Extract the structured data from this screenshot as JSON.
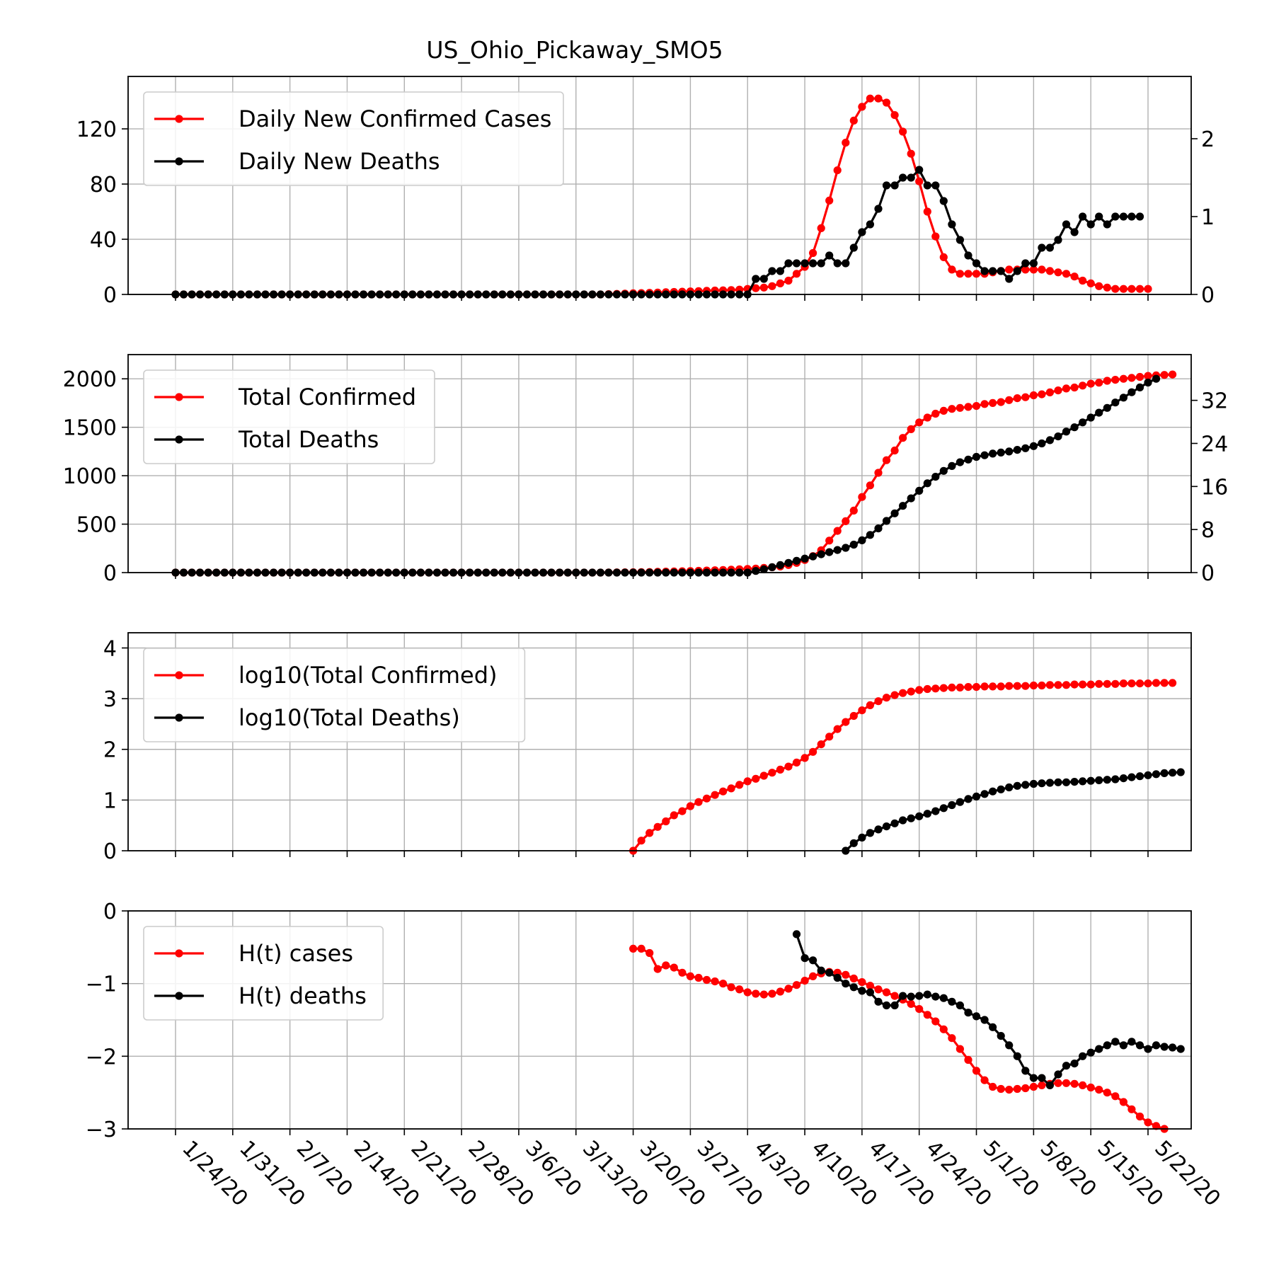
{
  "title": "US_Ohio_Pickaway_SMO5",
  "colors": {
    "cases": "#ff0000",
    "deaths": "#000000",
    "grid": "#b0b0b0"
  },
  "x_tick_labels": [
    "1/24/20",
    "1/31/20",
    "2/7/20",
    "2/14/20",
    "2/21/20",
    "2/28/20",
    "3/6/20",
    "3/13/20",
    "3/20/20",
    "3/27/20",
    "4/3/20",
    "4/10/20",
    "4/17/20",
    "4/24/20",
    "5/1/20",
    "5/8/20",
    "5/15/20",
    "5/22/20"
  ],
  "chart_data": [
    {
      "type": "line",
      "x_range": [
        "1/24/20",
        "5/25/20"
      ],
      "ylim": [
        0,
        158
      ],
      "y_ticks": [
        0,
        40,
        80,
        120
      ],
      "y2lim": [
        0,
        2.8
      ],
      "y2_ticks": [
        0,
        1,
        2
      ],
      "legend_placement": "top-left",
      "grid": true,
      "series": [
        {
          "name": "Daily New Confirmed Cases",
          "axis": "left",
          "start": "1/24/20",
          "values": [
            0,
            0,
            0,
            0,
            0,
            0,
            0,
            0,
            0,
            0,
            0,
            0,
            0,
            0,
            0,
            0,
            0,
            0,
            0,
            0,
            0,
            0,
            0,
            0,
            0,
            0,
            0,
            0,
            0,
            0,
            0,
            0,
            0,
            0,
            0,
            0,
            0,
            0,
            0,
            0,
            0,
            0,
            0,
            0,
            0,
            0,
            0,
            0,
            0,
            0,
            0,
            0,
            0,
            0.2,
            0.4,
            0.6,
            0.8,
            1,
            1.2,
            1.4,
            1.6,
            1.8,
            2,
            2.2,
            2.4,
            2.6,
            2.8,
            3,
            3.2,
            3.5,
            4,
            4.5,
            5,
            6,
            8,
            10,
            15,
            20,
            30,
            48,
            68,
            90,
            110,
            126,
            136,
            142,
            142,
            139,
            130,
            118,
            102,
            82,
            60,
            42,
            27,
            18,
            15,
            15,
            15,
            15,
            16,
            17,
            18,
            18,
            18,
            18,
            18,
            17,
            16,
            15,
            13,
            10,
            8,
            6,
            5,
            4,
            4,
            4,
            4,
            4
          ]
        },
        {
          "name": "Daily New Deaths",
          "axis": "right",
          "start": "1/24/20",
          "values": [
            0,
            0,
            0,
            0,
            0,
            0,
            0,
            0,
            0,
            0,
            0,
            0,
            0,
            0,
            0,
            0,
            0,
            0,
            0,
            0,
            0,
            0,
            0,
            0,
            0,
            0,
            0,
            0,
            0,
            0,
            0,
            0,
            0,
            0,
            0,
            0,
            0,
            0,
            0,
            0,
            0,
            0,
            0,
            0,
            0,
            0,
            0,
            0,
            0,
            0,
            0,
            0,
            0,
            0,
            0,
            0,
            0,
            0,
            0,
            0,
            0,
            0,
            0,
            0,
            0,
            0,
            0,
            0,
            0,
            0,
            0,
            0.2,
            0.2,
            0.3,
            0.3,
            0.4,
            0.4,
            0.4,
            0.4,
            0.4,
            0.5,
            0.4,
            0.4,
            0.6,
            0.8,
            0.9,
            1.1,
            1.4,
            1.4,
            1.5,
            1.5,
            1.6,
            1.4,
            1.4,
            1.2,
            0.9,
            0.7,
            0.5,
            0.4,
            0.3,
            0.3,
            0.3,
            0.2,
            0.3,
            0.4,
            0.4,
            0.6,
            0.6,
            0.7,
            0.9,
            0.8,
            1,
            0.9,
            1,
            0.9,
            1,
            1,
            1,
            1
          ]
        }
      ]
    },
    {
      "type": "line",
      "x_range": [
        "1/24/20",
        "5/25/20"
      ],
      "ylim": [
        0,
        2250
      ],
      "y_ticks": [
        0,
        500,
        1000,
        1500,
        2000
      ],
      "y2lim": [
        0,
        40.5
      ],
      "y2_ticks": [
        0,
        8,
        16,
        24,
        32
      ],
      "legend_placement": "top-left",
      "grid": true,
      "series": [
        {
          "name": "Total Confirmed",
          "axis": "left",
          "start": "1/24/20",
          "values": [
            0,
            0,
            0,
            0,
            0,
            0,
            0,
            0,
            0,
            0,
            0,
            0,
            0,
            0,
            0,
            0,
            0,
            0,
            0,
            0,
            0,
            0,
            0,
            0,
            0,
            0,
            0,
            0,
            0,
            0,
            0,
            0,
            0,
            0,
            0,
            0,
            0,
            0,
            0,
            0,
            0,
            0,
            0,
            0,
            0,
            0,
            0,
            0,
            0,
            0,
            0,
            0,
            0,
            1,
            2,
            3,
            4,
            5,
            6,
            8,
            10,
            12,
            14,
            16,
            18,
            21,
            24,
            27,
            30,
            34,
            38,
            42,
            48,
            55,
            63,
            78,
            100,
            130,
            170,
            230,
            330,
            430,
            530,
            640,
            780,
            900,
            1030,
            1160,
            1260,
            1390,
            1480,
            1550,
            1600,
            1640,
            1670,
            1690,
            1700,
            1710,
            1720,
            1740,
            1750,
            1760,
            1780,
            1800,
            1810,
            1830,
            1840,
            1860,
            1880,
            1900,
            1910,
            1930,
            1950,
            1960,
            1980,
            1990,
            2000,
            2010,
            2020,
            2030,
            2035,
            2040,
            2045
          ]
        },
        {
          "name": "Total Deaths",
          "axis": "right",
          "start": "1/24/20",
          "values": [
            0,
            0,
            0,
            0,
            0,
            0,
            0,
            0,
            0,
            0,
            0,
            0,
            0,
            0,
            0,
            0,
            0,
            0,
            0,
            0,
            0,
            0,
            0,
            0,
            0,
            0,
            0,
            0,
            0,
            0,
            0,
            0,
            0,
            0,
            0,
            0,
            0,
            0,
            0,
            0,
            0,
            0,
            0,
            0,
            0,
            0,
            0,
            0,
            0,
            0,
            0,
            0,
            0,
            0,
            0,
            0,
            0,
            0,
            0,
            0,
            0,
            0,
            0,
            0,
            0,
            0,
            0,
            0,
            0,
            0,
            0,
            0.3,
            0.6,
            1,
            1.4,
            1.8,
            2.2,
            2.6,
            3,
            3.4,
            3.8,
            4.2,
            4.6,
            5.2,
            6,
            7,
            8.2,
            9.6,
            11,
            12.4,
            13.8,
            15.2,
            16.6,
            17.8,
            18.9,
            19.8,
            20.5,
            21,
            21.5,
            21.8,
            22.1,
            22.3,
            22.5,
            22.8,
            23.1,
            23.5,
            24,
            24.6,
            25.3,
            26.2,
            27,
            27.9,
            28.8,
            29.7,
            30.6,
            31.6,
            32.5,
            33.5,
            34.4,
            35.3,
            36
          ]
        }
      ]
    },
    {
      "type": "line",
      "x_range": [
        "1/24/20",
        "5/25/20"
      ],
      "ylim": [
        0,
        4.3
      ],
      "y_ticks": [
        0,
        1,
        2,
        3,
        4
      ],
      "legend_placement": "top-left",
      "grid": true,
      "series": [
        {
          "name": "log10(Total Confirmed)",
          "start": "3/20/20",
          "values": [
            0,
            0.2,
            0.35,
            0.47,
            0.58,
            0.7,
            0.78,
            0.88,
            0.96,
            1.03,
            1.1,
            1.17,
            1.23,
            1.3,
            1.37,
            1.42,
            1.48,
            1.54,
            1.6,
            1.66,
            1.74,
            1.83,
            1.95,
            2.1,
            2.25,
            2.4,
            2.54,
            2.66,
            2.77,
            2.87,
            2.95,
            3.02,
            3.07,
            3.11,
            3.14,
            3.17,
            3.19,
            3.2,
            3.21,
            3.22,
            3.22,
            3.23,
            3.23,
            3.24,
            3.24,
            3.24,
            3.25,
            3.25,
            3.25,
            3.26,
            3.26,
            3.27,
            3.27,
            3.27,
            3.28,
            3.28,
            3.28,
            3.29,
            3.29,
            3.29,
            3.3,
            3.3,
            3.3,
            3.3,
            3.31,
            3.31,
            3.31
          ]
        },
        {
          "name": "log10(Total Deaths)",
          "start": "4/15/20",
          "values": [
            0,
            0.15,
            0.26,
            0.35,
            0.42,
            0.48,
            0.54,
            0.6,
            0.64,
            0.68,
            0.73,
            0.78,
            0.84,
            0.9,
            0.96,
            1.02,
            1.07,
            1.12,
            1.17,
            1.21,
            1.25,
            1.28,
            1.3,
            1.32,
            1.33,
            1.34,
            1.35,
            1.35,
            1.36,
            1.37,
            1.38,
            1.39,
            1.4,
            1.41,
            1.43,
            1.45,
            1.47,
            1.49,
            1.51,
            1.53,
            1.54,
            1.55
          ]
        }
      ]
    },
    {
      "type": "line",
      "x_range": [
        "1/24/20",
        "5/25/20"
      ],
      "ylim": [
        -3,
        0
      ],
      "y_ticks": [
        -3,
        -2,
        -1,
        0
      ],
      "y_tick_labels": [
        "−3",
        "−2",
        "−1",
        "0"
      ],
      "legend_placement": "top-left",
      "grid": true,
      "series": [
        {
          "name": "H(t) cases",
          "start": "3/20/20",
          "values": [
            -0.52,
            -0.52,
            -0.58,
            -0.8,
            -0.75,
            -0.78,
            -0.85,
            -0.9,
            -0.92,
            -0.95,
            -0.97,
            -1.0,
            -1.05,
            -1.08,
            -1.12,
            -1.14,
            -1.15,
            -1.14,
            -1.11,
            -1.07,
            -1.02,
            -0.96,
            -0.9,
            -0.86,
            -0.84,
            -0.85,
            -0.88,
            -0.93,
            -0.98,
            -1.03,
            -1.08,
            -1.12,
            -1.17,
            -1.22,
            -1.28,
            -1.35,
            -1.43,
            -1.52,
            -1.63,
            -1.75,
            -1.9,
            -2.05,
            -2.2,
            -2.33,
            -2.42,
            -2.45,
            -2.46,
            -2.45,
            -2.44,
            -2.42,
            -2.4,
            -2.38,
            -2.37,
            -2.37,
            -2.38,
            -2.4,
            -2.43,
            -2.46,
            -2.5,
            -2.55,
            -2.63,
            -2.73,
            -2.83,
            -2.91,
            -2.96,
            -3.0
          ]
        },
        {
          "name": "H(t) deaths",
          "start": "4/9/20",
          "values": [
            -0.32,
            -0.65,
            -0.68,
            -0.82,
            -0.85,
            -0.92,
            -1.0,
            -1.05,
            -1.1,
            -1.12,
            -1.25,
            -1.3,
            -1.3,
            -1.17,
            -1.18,
            -1.17,
            -1.15,
            -1.18,
            -1.2,
            -1.25,
            -1.3,
            -1.4,
            -1.45,
            -1.5,
            -1.6,
            -1.72,
            -1.85,
            -2.0,
            -2.2,
            -2.3,
            -2.3,
            -2.4,
            -2.25,
            -2.13,
            -2.1,
            -2.0,
            -1.95,
            -1.9,
            -1.85,
            -1.8,
            -1.85,
            -1.8,
            -1.85,
            -1.9,
            -1.85,
            -1.87,
            -1.88,
            -1.9
          ]
        }
      ]
    }
  ]
}
